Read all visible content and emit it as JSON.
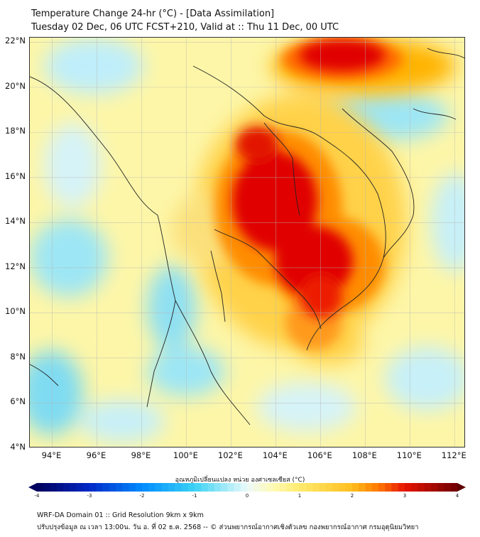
{
  "header": {
    "title_line1": "Temperature Change 24-hr (°C) - [Data Assimilation]",
    "title_line2": "Tuesday 02 Dec, 06 UTC FCST+210, Valid at :: Thu 11 Dec, 00 UTC"
  },
  "map": {
    "lon_range": [
      93,
      112.5
    ],
    "lat_range": [
      4,
      22.2
    ],
    "lat_labels": [
      "22°N",
      "20°N",
      "18°N",
      "16°N",
      "14°N",
      "12°N",
      "10°N",
      "8°N",
      "6°N",
      "4°N"
    ],
    "lat_values": [
      22,
      20,
      18,
      16,
      14,
      12,
      10,
      8,
      6,
      4
    ],
    "lon_labels": [
      "94°E",
      "96°E",
      "98°E",
      "100°E",
      "102°E",
      "104°E",
      "106°E",
      "108°E",
      "110°E",
      "112°E"
    ],
    "lon_values": [
      94,
      96,
      98,
      100,
      102,
      104,
      106,
      108,
      110,
      112
    ],
    "colors": {
      "background": "#fdf6a8",
      "warm_strong": "#e00000",
      "warm": "#ff7a00",
      "warm_light": "#ffd24a",
      "cool": "#9de6f5",
      "cool_strong": "#55d0ee"
    }
  },
  "colorbar": {
    "title": "อุณหภูมิเปลี่ยนแปลง หน่วย องศาเซลเซียส (°C)",
    "ticks": [
      "-4",
      "-3",
      "-2",
      "-1",
      "0",
      "1",
      "2",
      "3",
      "4"
    ],
    "tick_values": [
      -4,
      -3,
      -2,
      -1,
      0,
      1,
      2,
      3,
      4
    ],
    "min": -4,
    "max": 4
  },
  "footer": {
    "line1": "WRF-DA Domain 01 :: Grid Resolution 9km x 9km",
    "line2": "ปรับปรุงข้อมูล ณ เวลา 13:00น. วัน อ. ที่ 02 ธ.ค. 2568 -- © ส่วนพยากรณ์อากาศเชิงตัวเลข กองพยากรณ์อากาศ กรมอุตุนิยมวิทยา"
  }
}
